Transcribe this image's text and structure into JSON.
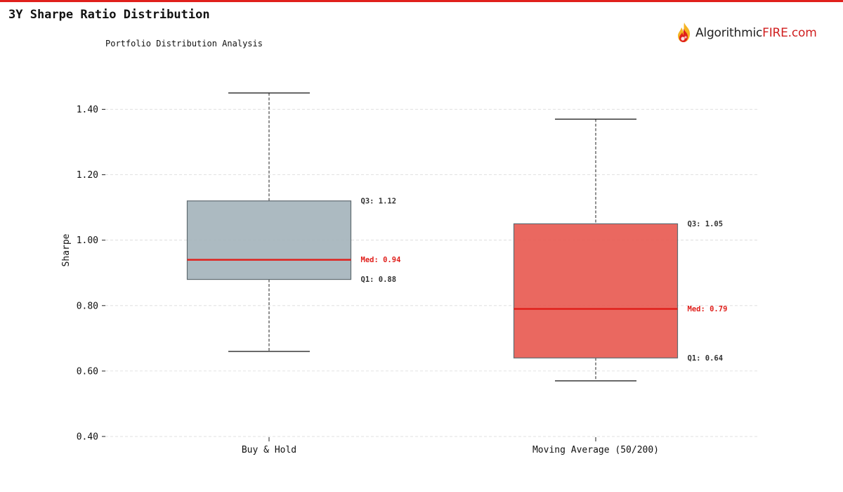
{
  "title": "3Y Sharpe Ratio Distribution",
  "subtitle": "Portfolio Distribution Analysis",
  "logo": {
    "text_a": "Algorithmic",
    "text_b": "FIRE.com",
    "icon": "flame-icon"
  },
  "colors": {
    "accent": "#e0201c",
    "buy_hold": "#a3b2ba",
    "moving_average": "#e8584f",
    "median": "#e0201c"
  },
  "chart_data": {
    "type": "box",
    "title": "3Y Sharpe Ratio Distribution",
    "subtitle": "Portfolio Distribution Analysis",
    "ylabel": "Sharpe",
    "xlabel": "",
    "ylim": [
      0.4,
      1.5
    ],
    "yticks": [
      0.4,
      0.6,
      0.8,
      1.0,
      1.2,
      1.4
    ],
    "ytick_labels": [
      "0.40",
      "0.60",
      "0.80",
      "1.00",
      "1.20",
      "1.40"
    ],
    "grid": true,
    "categories": [
      "Buy & Hold",
      "Moving Average (50/200)"
    ],
    "series": [
      {
        "category": "Buy & Hold",
        "whisker_low": 0.66,
        "q1": 0.88,
        "median": 0.94,
        "q3": 1.12,
        "whisker_high": 1.45,
        "color": "#a3b2ba",
        "labels": {
          "q3": "Q3: 1.12",
          "median": "Med: 0.94",
          "q1": "Q1: 0.88"
        }
      },
      {
        "category": "Moving Average (50/200)",
        "whisker_low": 0.57,
        "q1": 0.64,
        "median": 0.79,
        "q3": 1.05,
        "whisker_high": 1.37,
        "color": "#e8584f",
        "labels": {
          "q3": "Q3: 1.05",
          "median": "Med: 0.79",
          "q1": "Q1: 0.64"
        }
      }
    ]
  }
}
